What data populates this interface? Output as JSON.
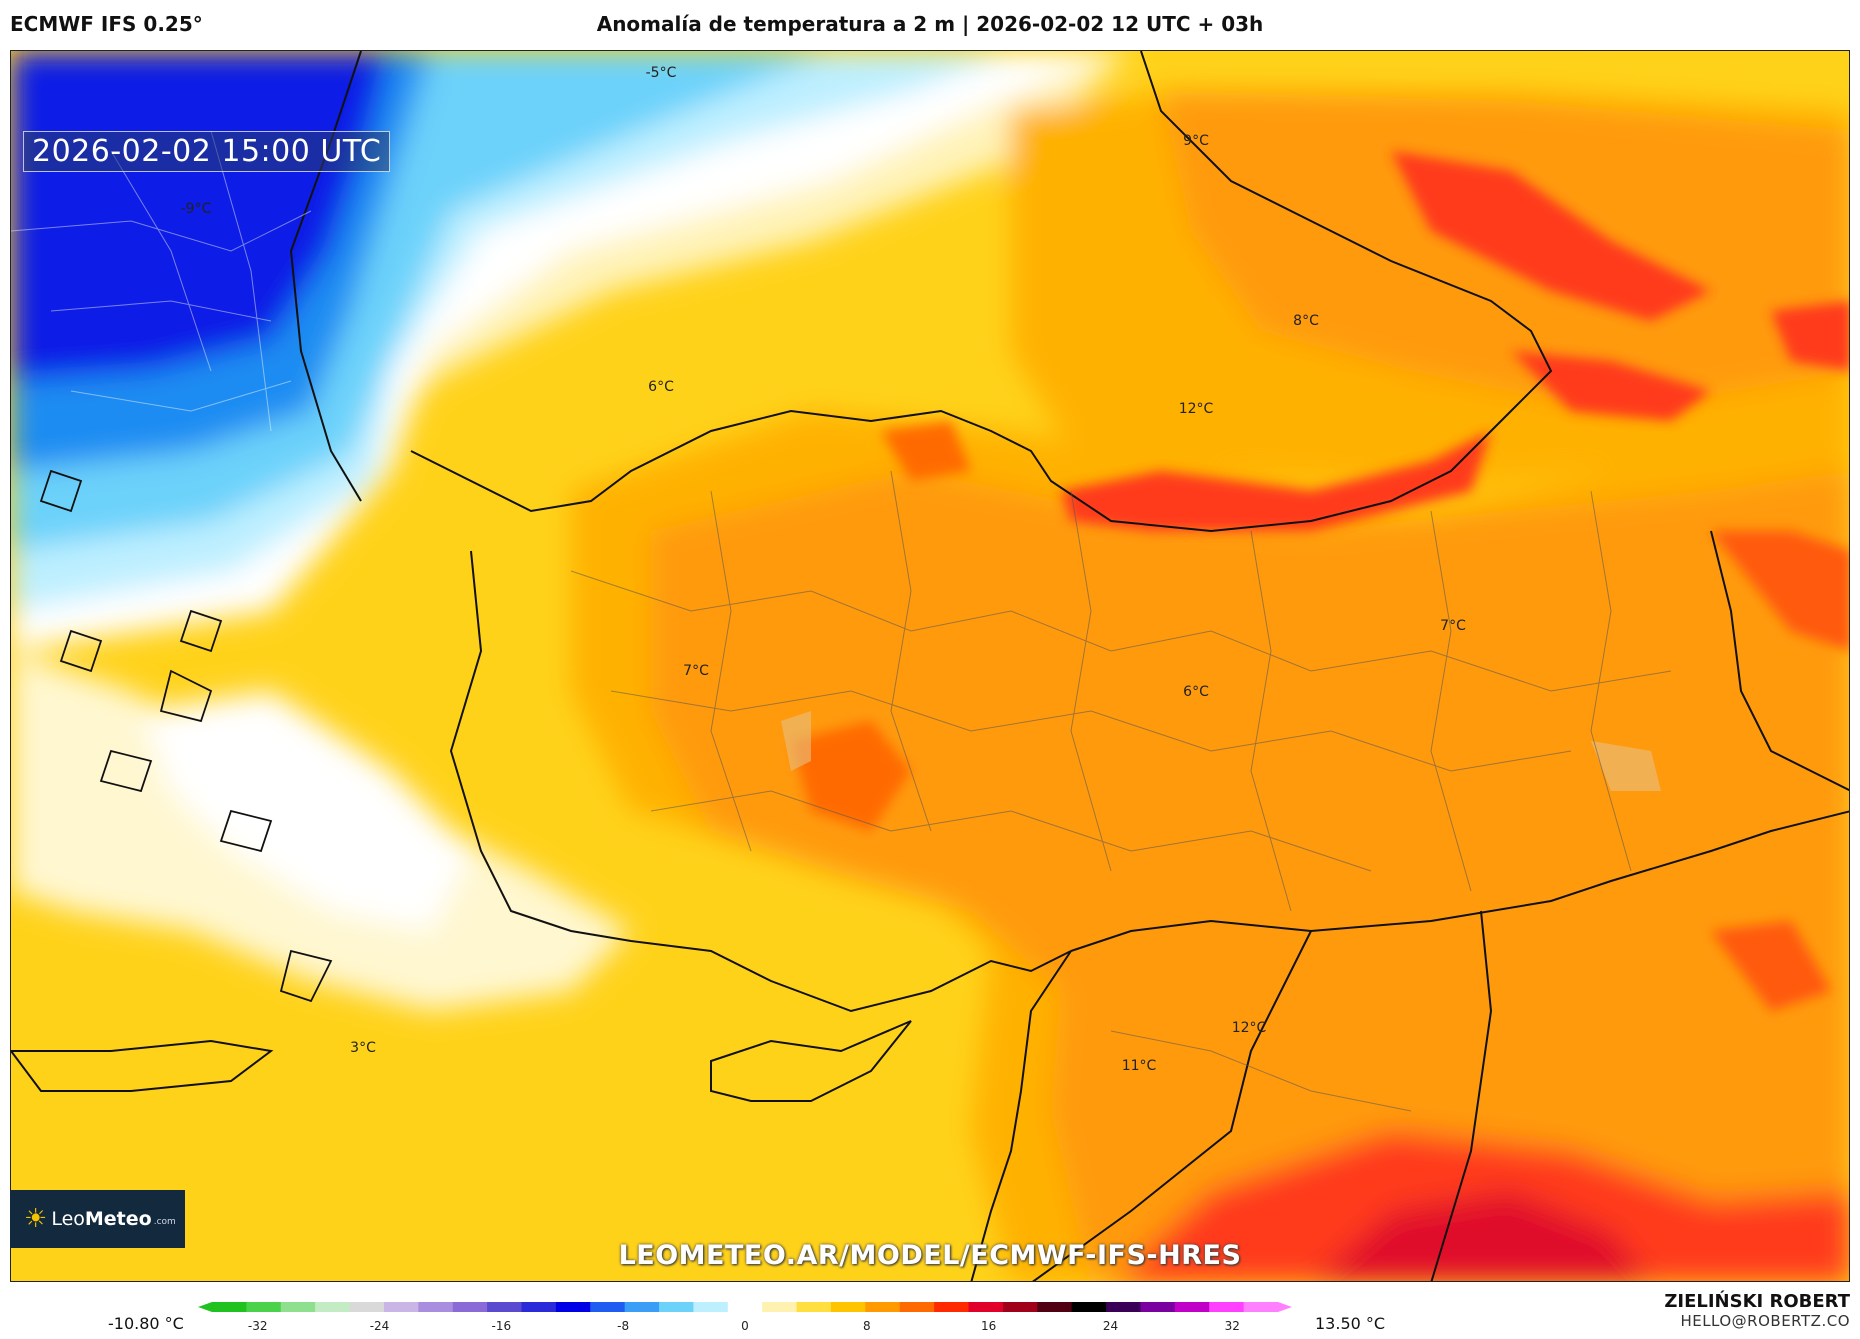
{
  "header": {
    "model": "ECMWF IFS 0.25°",
    "title": "Anomalía de temperatura a 2 m | 2026-02-02 12 UTC + 03h"
  },
  "map": {
    "valid_time": "2026-02-02 15:00 UTC",
    "labels": [
      {
        "text": "-5°C"
      },
      {
        "text": "9°C"
      },
      {
        "text": "-9°C"
      },
      {
        "text": "8°C"
      },
      {
        "text": "6°C"
      },
      {
        "text": "12°C"
      },
      {
        "text": "7°C"
      },
      {
        "text": "7°C"
      },
      {
        "text": "6°C"
      },
      {
        "text": "3°C"
      },
      {
        "text": "12°C"
      },
      {
        "text": "11°C"
      }
    ],
    "watermark": "LEOMETEO.AR/MODEL/ECMWF-IFS-HRES"
  },
  "logo": {
    "brand_light": "Leo",
    "brand_bold": "Meteo",
    "tld": ".com"
  },
  "legend": {
    "min": "-10.80 °C",
    "max": "13.50 °C",
    "ticks": [
      "-32",
      "-24",
      "-16",
      "-8",
      "0",
      "8",
      "16",
      "24",
      "32"
    ],
    "tick_values": [
      -32,
      -24,
      -16,
      -8,
      0,
      8,
      16,
      24,
      32
    ],
    "range": [
      -35,
      35
    ],
    "colors": [
      "#1fc21f",
      "#4bd24b",
      "#8ee08e",
      "#c4ecc4",
      "#d9d9d9",
      "#c9b6e6",
      "#a98ee0",
      "#8a6ad6",
      "#5a4ad0",
      "#2a2ad8",
      "#0000e6",
      "#1e5cf2",
      "#3a9ef6",
      "#6cd2fa",
      "#bdefff",
      "#ffffff",
      "#fff2b0",
      "#ffde40",
      "#ffc400",
      "#ff9a00",
      "#ff6a00",
      "#ff2a00",
      "#e0002a",
      "#a0001a",
      "#500010",
      "#000000",
      "#3a0058",
      "#7a00a0",
      "#c000c8",
      "#ff40ff",
      "#ff80ff"
    ]
  },
  "author": {
    "name": "ZIELIŃSKI ROBERT",
    "email": "HELLO@ROBERTZ.CO"
  },
  "colors": {
    "deep_blue": "#0a1ee6",
    "light_blue": "#6cd2fa",
    "pale_yellow": "#fff2b0",
    "yellow": "#ffd21a",
    "orange": "#ff9a10",
    "red": "#ff3a1a",
    "crimson": "#e0102a"
  }
}
